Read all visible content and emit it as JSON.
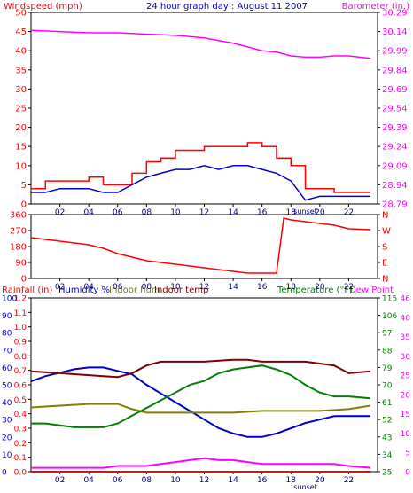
{
  "colors": {
    "background": "#ffffff",
    "frame": "#000000",
    "windspeed": "#ff0000",
    "windspeed_avg": "#0000cc",
    "barometer": "#ff00ff",
    "direction": "#ff0000",
    "rainfall": "#ff0000",
    "humidity": "#0000cc",
    "indoor_humidity": "#808000",
    "indoor_temp": "#800000",
    "temperature": "#008000",
    "dew_point": "#ff00ff"
  },
  "chart_data": [
    {
      "type": "line",
      "title": "24 hour graph day : August 11 2007",
      "ylabel_left": "Windspeed (mph)",
      "ylabel_right": "Barometer (in.)",
      "x_ticks": [
        "02",
        "04",
        "06",
        "08",
        "10",
        "12",
        "14",
        "16",
        "18",
        "20",
        "22"
      ],
      "x_annotation": "sunset",
      "x_annotation_at": 19,
      "ylim_left": [
        0,
        50
      ],
      "yticks_left": [
        "50",
        "45",
        "40",
        "35",
        "30",
        "25",
        "20",
        "15",
        "10",
        "5",
        "0"
      ],
      "ylim_right": [
        28.79,
        30.29
      ],
      "yticks_right": [
        "30.29",
        "30.14",
        "29.99",
        "29.84",
        "29.69",
        "29.54",
        "29.39",
        "29.24",
        "29.09",
        "28.94",
        "28.79"
      ],
      "series": [
        {
          "name": "Windspeed (mph)",
          "axis": "left",
          "step": true,
          "x": [
            0,
            1,
            2,
            3,
            4,
            5,
            6,
            7,
            8,
            9,
            10,
            11,
            12,
            13,
            14,
            15,
            16,
            17,
            18,
            19,
            20,
            21,
            22,
            23.5
          ],
          "values": [
            4,
            6,
            6,
            6,
            7,
            5,
            5,
            8,
            11,
            12,
            14,
            14,
            15,
            15,
            15,
            16,
            15,
            12,
            10,
            4,
            4,
            3,
            3,
            3
          ]
        },
        {
          "name": "Wind avg (mph)",
          "axis": "left",
          "x": [
            0,
            1,
            2,
            3,
            4,
            5,
            6,
            7,
            8,
            9,
            10,
            11,
            12,
            13,
            14,
            15,
            16,
            17,
            18,
            19,
            20,
            21,
            22,
            23.5
          ],
          "values": [
            3,
            3,
            4,
            4,
            4,
            3,
            3,
            5,
            7,
            8,
            9,
            9,
            10,
            9,
            10,
            10,
            9,
            8,
            6,
            1,
            2,
            2,
            2,
            2
          ]
        },
        {
          "name": "Barometer (in.)",
          "axis": "right",
          "x": [
            0,
            2,
            4,
            6,
            8,
            10,
            12,
            13,
            14,
            15,
            16,
            17,
            18,
            19,
            20,
            21,
            22,
            23.5
          ],
          "values": [
            30.15,
            30.14,
            30.13,
            30.13,
            30.12,
            30.11,
            30.09,
            30.07,
            30.05,
            30.02,
            29.99,
            29.98,
            29.95,
            29.94,
            29.94,
            29.95,
            29.95,
            29.93
          ]
        }
      ]
    },
    {
      "type": "line",
      "ylim": [
        0,
        360
      ],
      "yticks_left": [
        "360",
        "270",
        "180",
        "90",
        "0"
      ],
      "yticks_right": [
        "N",
        "W",
        "S",
        "E",
        "N"
      ],
      "x_ticks": [
        "02",
        "04",
        "06",
        "08",
        "10",
        "12",
        "14",
        "16",
        "18",
        "20",
        "22"
      ],
      "series": [
        {
          "name": "Wind direction",
          "axis": "left",
          "x": [
            0,
            1,
            2,
            3,
            4,
            5,
            6,
            7,
            8,
            9,
            10,
            11,
            12,
            13,
            14,
            15,
            16,
            17,
            17.5,
            18,
            19,
            20,
            21,
            22,
            23.5
          ],
          "values": [
            230,
            220,
            210,
            200,
            190,
            170,
            140,
            120,
            100,
            90,
            80,
            70,
            60,
            50,
            40,
            30,
            30,
            30,
            340,
            330,
            320,
            310,
            300,
            280,
            275
          ]
        }
      ]
    },
    {
      "type": "line",
      "legend": [
        "Rainfall (in)",
        "Humidity %",
        "Indoor hum",
        "Indoor temp",
        "Temperature (°F)",
        "Dew Point"
      ],
      "x_ticks": [
        "02",
        "04",
        "06",
        "08",
        "10",
        "12",
        "14",
        "16",
        "18",
        "20",
        "22"
      ],
      "x_annotation": "sunset",
      "x_annotation_at": 19,
      "yticks_rain": [
        "1.2",
        "1.1",
        "1.0",
        "0.9",
        "0.8",
        "0.7",
        "0.6",
        "0.5",
        "0.4",
        "0.3",
        "0.2",
        "0.1",
        "0.0"
      ],
      "yticks_humidity": [
        "100",
        "90",
        "80",
        "70",
        "60",
        "50",
        "40",
        "30",
        "20",
        "10",
        "0"
      ],
      "yticks_temp_f": [
        "115",
        "106",
        "97",
        "88",
        "79",
        "70",
        "61",
        "52",
        "43",
        "34",
        "25"
      ],
      "yticks_temp_c": [
        "46",
        "40",
        "35",
        "30",
        "25",
        "20",
        "15",
        "10",
        "5",
        "0"
      ],
      "ylim_rain": [
        0,
        1.2
      ],
      "ylim_humidity": [
        0,
        100
      ],
      "ylim_temp": [
        25,
        115
      ],
      "series": [
        {
          "name": "Rainfall (in)",
          "axis": "rain",
          "x": [
            0,
            23.5
          ],
          "values": [
            0,
            0
          ]
        },
        {
          "name": "Humidity %",
          "axis": "humidity",
          "x": [
            0,
            1,
            2,
            3,
            4,
            5,
            6,
            7,
            8,
            9,
            10,
            11,
            12,
            13,
            14,
            15,
            16,
            17,
            18,
            19,
            20,
            21,
            22,
            23.5
          ],
          "values": [
            52,
            55,
            57,
            59,
            60,
            60,
            58,
            56,
            50,
            45,
            40,
            35,
            30,
            25,
            22,
            20,
            20,
            22,
            25,
            28,
            30,
            32,
            32,
            32
          ]
        },
        {
          "name": "Indoor hum",
          "axis": "humidity",
          "x": [
            0,
            2,
            4,
            6,
            7,
            8,
            10,
            12,
            14,
            16,
            18,
            20,
            22,
            23.5
          ],
          "values": [
            37,
            38,
            39,
            39,
            36,
            34,
            34,
            34,
            34,
            35,
            35,
            35,
            36,
            38
          ]
        },
        {
          "name": "Indoor temp",
          "axis": "temp",
          "x": [
            0,
            2,
            4,
            6,
            7,
            8,
            9,
            10,
            12,
            14,
            15,
            16,
            17,
            18,
            19,
            20,
            21,
            22,
            23.5
          ],
          "values": [
            77,
            76,
            75,
            74,
            76,
            80,
            82,
            82,
            82,
            83,
            83,
            82,
            82,
            82,
            82,
            81,
            80,
            76,
            77
          ]
        },
        {
          "name": "Temperature (°F)",
          "axis": "temp",
          "x": [
            0,
            1,
            2,
            3,
            4,
            5,
            6,
            7,
            8,
            9,
            10,
            11,
            12,
            13,
            14,
            15,
            16,
            17,
            18,
            19,
            20,
            21,
            22,
            23.5
          ],
          "values": [
            50,
            50,
            49,
            48,
            48,
            48,
            50,
            54,
            58,
            62,
            66,
            70,
            72,
            76,
            78,
            79,
            80,
            78,
            75,
            70,
            66,
            64,
            64,
            63
          ]
        },
        {
          "name": "Dew Point",
          "axis": "temp",
          "x": [
            0,
            1,
            2,
            3,
            4,
            5,
            6,
            7,
            8,
            9,
            10,
            11,
            12,
            13,
            14,
            15,
            16,
            17,
            18,
            19,
            20,
            21,
            22,
            23.5
          ],
          "values": [
            27,
            27,
            27,
            27,
            27,
            27,
            28,
            28,
            28,
            29,
            30,
            31,
            32,
            31,
            31,
            30,
            29,
            29,
            29,
            29,
            29,
            29,
            28,
            27
          ]
        }
      ]
    }
  ]
}
